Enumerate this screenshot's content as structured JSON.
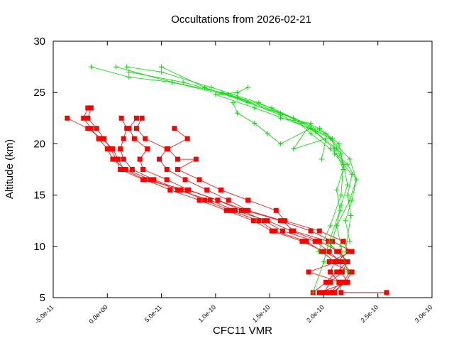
{
  "chart_data": {
    "type": "line",
    "title": "Occultations from 2026-02-21",
    "xlabel": "CFC11 VMR",
    "ylabel": "Altitude (km)",
    "xlim": [
      -5e-11,
      3e-10
    ],
    "ylim": [
      5,
      30
    ],
    "xticks": [
      -5e-11,
      0,
      5e-11,
      1e-10,
      1.5e-10,
      2e-10,
      2.5e-10,
      3e-10
    ],
    "xtick_labels": [
      "-5.0e-11",
      "0.0e+00",
      "5.0e-11",
      "1.0e-10",
      "1.5e-10",
      "2.0e-10",
      "2.5e-10",
      "3.0e-10"
    ],
    "yticks": [
      5,
      10,
      15,
      20,
      25,
      30
    ],
    "ytick_labels": [
      "5",
      "10",
      "15",
      "20",
      "25",
      "30"
    ],
    "grid": false,
    "series_colors": {
      "red": "#ff0000",
      "green": "#00dd00"
    },
    "red_series": [
      {
        "x": [
          -1.5e-11,
          -1.8e-11,
          -1e-11,
          -3e-12,
          3e-12,
          8e-12,
          1.2e-11,
          3.3e-11,
          7.4e-11,
          1.02e-10,
          1.28e-10,
          1.6e-10,
          1.88e-10,
          2.08e-10,
          2.26e-10,
          2.05e-10,
          2.26e-10,
          2.2e-10,
          2.08e-10
        ],
        "y": [
          23.5,
          22.5,
          21.5,
          20.5,
          19.5,
          18.5,
          17.5,
          16.5,
          15.5,
          14.5,
          13.5,
          12.5,
          11.5,
          10.5,
          9.5,
          8.5,
          7.5,
          6.5,
          5.5
        ]
      },
      {
        "x": [
          -1.8e-11,
          -2.2e-11,
          -1.5e-11,
          -8e-12,
          0.0,
          5e-12,
          1.7e-11,
          4e-11,
          6.5e-11,
          9.5e-11,
          1.18e-10,
          1.48e-10,
          1.7e-10,
          1.96e-10,
          2.14e-10,
          2.22e-10,
          2.12e-10,
          2.02e-10,
          1.9e-10
        ],
        "y": [
          23.5,
          22.5,
          21.5,
          20.5,
          19.5,
          18.5,
          17.5,
          16.5,
          15.5,
          14.5,
          13.5,
          12.5,
          11.5,
          10.5,
          9.5,
          8.5,
          7.5,
          6.5,
          5.5
        ]
      },
      {
        "x": [
          -3.7e-11,
          -1.8e-11,
          -5e-12,
          5e-12,
          1e-11,
          1.5e-11,
          3.5e-11,
          5.8e-11,
          8.5e-11,
          1.1e-10,
          1.35e-10,
          1.52e-10,
          1.8e-10,
          2e-10,
          2.18e-10,
          2.24e-10,
          2.18e-10,
          2.1e-10,
          2.02e-10
        ],
        "y": [
          22.5,
          21.5,
          20.5,
          19.5,
          18.5,
          17.5,
          16.5,
          15.5,
          14.5,
          13.5,
          12.5,
          11.5,
          10.5,
          9.5,
          8.5,
          7.5,
          6.5,
          5.5,
          5.5
        ]
      },
      {
        "x": [
          1.3e-11,
          1.8e-11,
          1.5e-11,
          1.2e-11,
          1.5e-11,
          2.3e-11,
          4.3e-11,
          6.8e-11,
          9e-11,
          1.14e-10,
          1.4e-10,
          1.55e-10,
          1.84e-10,
          1.98e-10,
          2.1e-10,
          2.06e-10,
          2.14e-10,
          2.16e-10,
          2.58e-10
        ],
        "y": [
          22.5,
          21.5,
          20.5,
          19.5,
          18.5,
          17.5,
          16.5,
          15.5,
          14.5,
          13.5,
          12.5,
          11.5,
          10.5,
          9.5,
          8.5,
          7.5,
          6.5,
          5.5,
          5.5
        ]
      },
      {
        "x": [
          2.7e-11,
          2e-11,
          2.5e-11,
          3.7e-11,
          3e-11,
          3.3e-11,
          5.5e-11,
          7.5e-11,
          1.02e-10,
          1.24e-10,
          1.45e-10,
          1.62e-10,
          1.92e-10,
          2.05e-10,
          2.15e-10,
          2.16e-10,
          2.22e-10,
          1.96e-10
        ],
        "y": [
          22.5,
          21.5,
          20.5,
          19.5,
          18.5,
          17.5,
          16.5,
          15.5,
          14.5,
          13.5,
          12.5,
          11.5,
          10.5,
          9.5,
          8.5,
          7.5,
          6.5,
          5.5
        ]
      },
      {
        "x": [
          3.2e-11,
          2.7e-11,
          3.5e-11,
          5.5e-11,
          4.8e-11,
          5.5e-11,
          7.2e-11,
          9.2e-11,
          1.12e-10,
          1.3e-10,
          1.62e-10,
          1.72e-10,
          2.04e-10,
          2.12e-10,
          2.22e-10,
          2.17e-10,
          2.06e-10,
          2e-10
        ],
        "y": [
          22.5,
          21.5,
          20.5,
          19.5,
          18.5,
          17.5,
          16.5,
          15.5,
          14.5,
          13.5,
          12.5,
          11.5,
          10.5,
          9.5,
          8.5,
          7.5,
          6.5,
          5.5
        ]
      },
      {
        "x": [
          6.2e-11,
          7.4e-11,
          5.6e-11,
          6.5e-11,
          8.2e-11,
          6.5e-11,
          8.5e-11,
          1.05e-10,
          1.3e-10,
          1.56e-10,
          1.64e-10,
          1.96e-10,
          2.18e-10,
          2.23e-10,
          2.12e-10,
          1.86e-10,
          2.16e-10,
          2.06e-10
        ],
        "y": [
          21.5,
          20.5,
          19.5,
          18.5,
          18.5,
          17.5,
          16.5,
          15.5,
          14.5,
          13.5,
          12.5,
          11.5,
          10.5,
          9.5,
          8.5,
          7.5,
          6.5,
          5.5
        ]
      }
    ],
    "green_series": [
      {
        "x": [
          1.3e-10,
          1.2e-10,
          1e-10,
          1.36e-10,
          1.88e-10,
          2.1e-10,
          2.18e-10,
          2.12e-10,
          2.15e-10,
          2.05e-10,
          2e-10,
          1.9e-10
        ],
        "y": [
          25.5,
          25.0,
          24.8,
          23.5,
          21.5,
          19.5,
          17.5,
          15.5,
          13.5,
          10.5,
          8.5,
          5.5
        ]
      },
      {
        "x": [
          -1.5e-11,
          2e-11,
          6e-11,
          1.06e-10,
          1.52e-10,
          2.02e-10,
          2.24e-10,
          2.3e-10,
          2.24e-10,
          2.12e-10,
          2.16e-10,
          2.22e-10
        ],
        "y": [
          27.5,
          26.5,
          26.0,
          25.0,
          23.5,
          21.0,
          18.5,
          16.5,
          14.5,
          12.0,
          10.0,
          7.5
        ]
      },
      {
        "x": [
          8e-12,
          6e-11,
          1.2e-10,
          1.6e-10,
          1.96e-10,
          2.14e-10,
          2.18e-10,
          2.22e-10,
          2.16e-10,
          2.12e-10,
          2.06e-10
        ],
        "y": [
          27.5,
          26.0,
          24.5,
          23.0,
          21.5,
          20.0,
          18.0,
          16.0,
          14.0,
          12.0,
          10.0
        ]
      },
      {
        "x": [
          1.8e-11,
          5e-11,
          9.6e-11,
          1.4e-10,
          1.8e-10,
          2.08e-10,
          2.1e-10,
          2.26e-10,
          2.22e-10,
          2.25e-10,
          2.2e-10
        ],
        "y": [
          27.5,
          27.0,
          25.5,
          24.0,
          22.0,
          20.5,
          19.0,
          17.0,
          15.0,
          13.0,
          9.5
        ]
      },
      {
        "x": [
          5e-11,
          9e-11,
          1.3e-10,
          1.72e-10,
          1.88e-10,
          2.06e-10,
          2.22e-10,
          2.3e-10,
          2.26e-10,
          2.2e-10,
          2.24e-10
        ],
        "y": [
          27.5,
          25.5,
          24.0,
          22.5,
          21.0,
          19.5,
          18.0,
          16.5,
          14.5,
          12.5,
          10.5
        ]
      },
      {
        "x": [
          2e-11,
          7e-11,
          1.12e-10,
          1.6e-10,
          1.92e-10,
          2.12e-10,
          2.18e-10,
          2.16e-10,
          2.06e-10,
          1.95e-10
        ],
        "y": [
          27.0,
          26.0,
          24.8,
          22.8,
          21.2,
          19.5,
          18.0,
          15.0,
          12.0,
          9.5
        ]
      },
      {
        "x": [
          1.16e-10,
          1.2e-10,
          1.36e-10,
          1.48e-10,
          1.6e-10,
          1.88e-10,
          2.06e-10,
          2.16e-10,
          2.18e-10
        ],
        "y": [
          24.0,
          23.0,
          22.0,
          21.0,
          20.0,
          21.5,
          20.5,
          19.0,
          18.0
        ]
      },
      {
        "x": [
          1.6e-10,
          1.88e-10,
          1.72e-10,
          2.02e-10,
          1.98e-10
        ],
        "y": [
          22.5,
          22.0,
          19.5,
          20.5,
          18.5
        ]
      }
    ]
  }
}
